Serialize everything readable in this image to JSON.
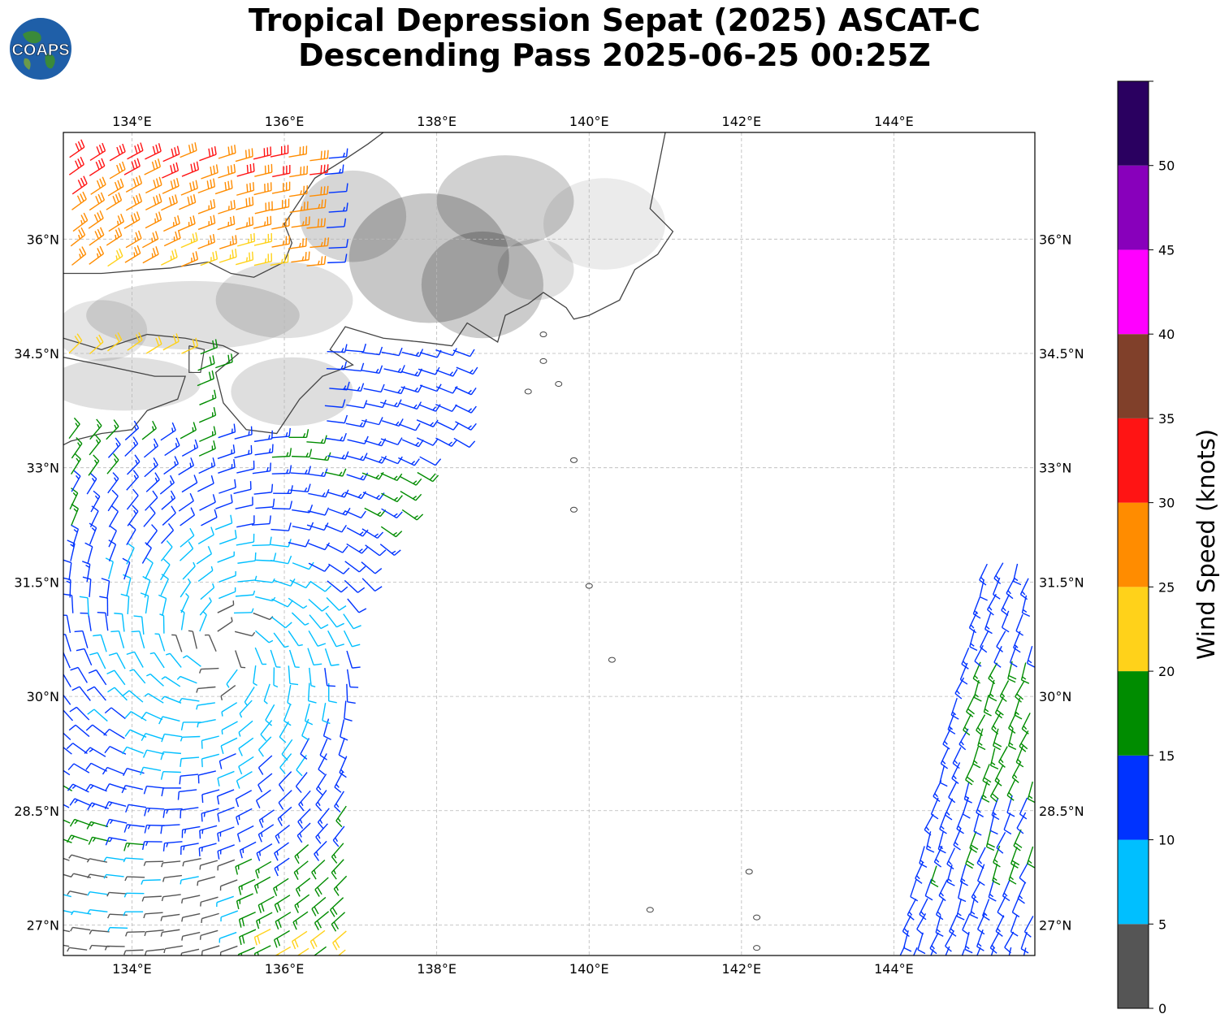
{
  "title": {
    "line1": "Tropical Depression Sepat (2025) ASCAT-C",
    "line2": "Descending Pass 2025-06-25 00:25Z"
  },
  "logo": {
    "text": "COAPS",
    "icon": "globe-icon"
  },
  "map": {
    "lon_range": [
      133.1,
      145.85
    ],
    "lat_range": [
      26.6,
      37.4
    ],
    "lon_ticks": [
      "134°E",
      "136°E",
      "138°E",
      "140°E",
      "142°E",
      "144°E"
    ],
    "lat_ticks": [
      "36°N",
      "34.5°N",
      "33°N",
      "31.5°N",
      "30°N",
      "28.5°N",
      "27°N"
    ],
    "gridlines": true,
    "grid_color": "#b8b8b8",
    "coastline_color": "#444444",
    "terrain_shading": "grayscale"
  },
  "colorbar": {
    "label": "Wind Speed (knots)",
    "ticks": [
      "0",
      "5",
      "10",
      "15",
      "20",
      "25",
      "30",
      "35",
      "40",
      "45",
      "50"
    ],
    "bins": [
      {
        "range": [
          0,
          5
        ],
        "color": "#555555"
      },
      {
        "range": [
          5,
          10
        ],
        "color": "#00bfff"
      },
      {
        "range": [
          10,
          15
        ],
        "color": "#0033ff"
      },
      {
        "range": [
          15,
          20
        ],
        "color": "#008c00"
      },
      {
        "range": [
          20,
          25
        ],
        "color": "#ffd21a"
      },
      {
        "range": [
          25,
          30
        ],
        "color": "#ff8c00"
      },
      {
        "range": [
          30,
          35
        ],
        "color": "#ff1414"
      },
      {
        "range": [
          35,
          40
        ],
        "color": "#80402a"
      },
      {
        "range": [
          40,
          45
        ],
        "color": "#ff00ff"
      },
      {
        "range": [
          45,
          50
        ],
        "color": "#8800bb"
      },
      {
        "range": [
          50,
          55
        ],
        "color": "#2a0060"
      }
    ]
  },
  "swaths": [
    {
      "name": "western-swath",
      "lon_range": [
        133.1,
        138.4
      ],
      "lat_range": [
        26.6,
        37.4
      ]
    },
    {
      "name": "eastern-swath",
      "lon_range": [
        144.1,
        145.85
      ],
      "lat_range": [
        26.6,
        31.9
      ]
    }
  ],
  "storm_center_approx": {
    "lon": 135.2,
    "lat": 30.6
  }
}
